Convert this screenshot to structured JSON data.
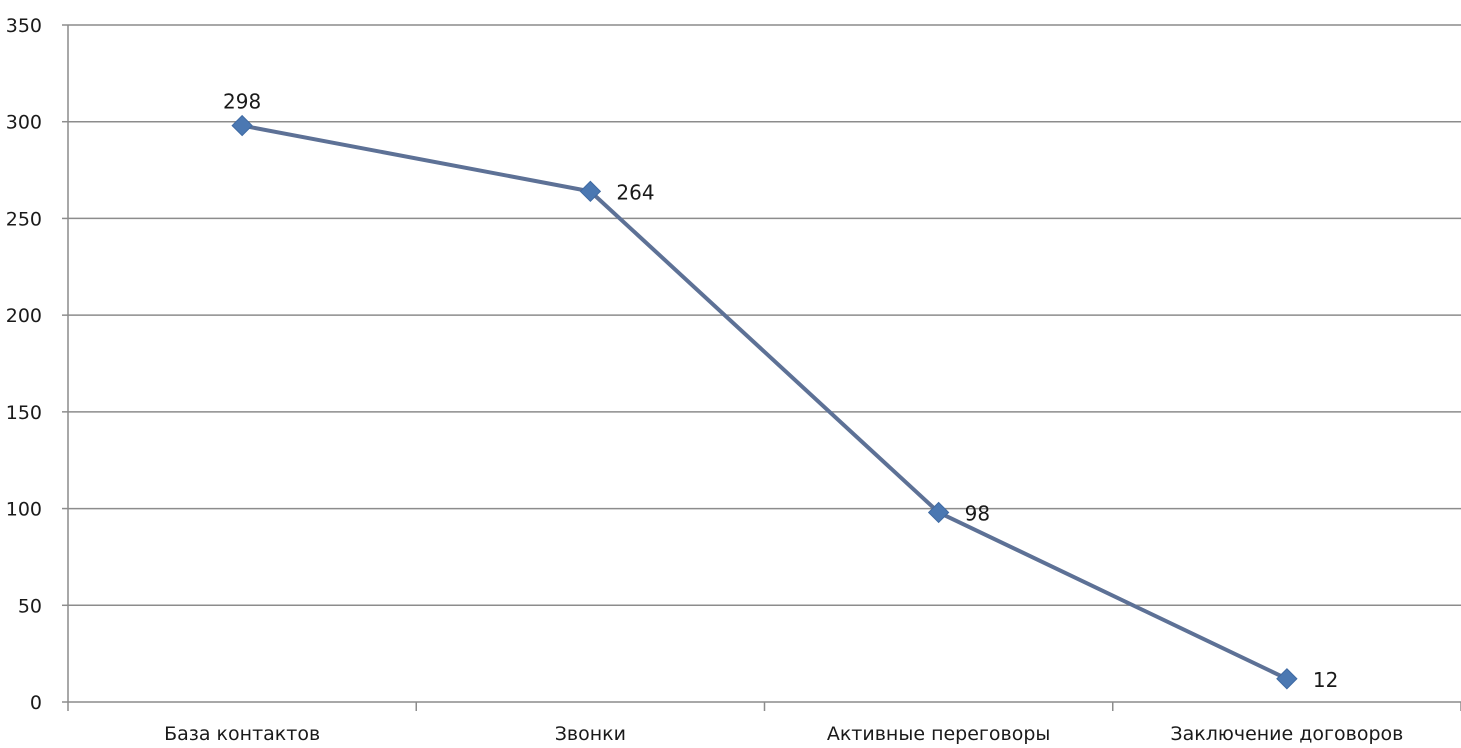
{
  "chart_data": {
    "type": "line",
    "categories": [
      "База контактов",
      "Звонки",
      "Активные переговоры",
      "Заключение договоров"
    ],
    "series": [
      {
        "values": [
          298,
          264,
          98,
          12
        ]
      }
    ],
    "ylim": [
      0,
      350
    ],
    "yticks": [
      0,
      50,
      100,
      150,
      200,
      250,
      300,
      350
    ],
    "grid": true,
    "data_labels": [
      "298",
      "264",
      "98",
      "12"
    ],
    "marker": "diamond",
    "colors": {
      "line": "#5d7196",
      "marker": "#4b78b2",
      "grid": "#8c8c8c"
    }
  }
}
